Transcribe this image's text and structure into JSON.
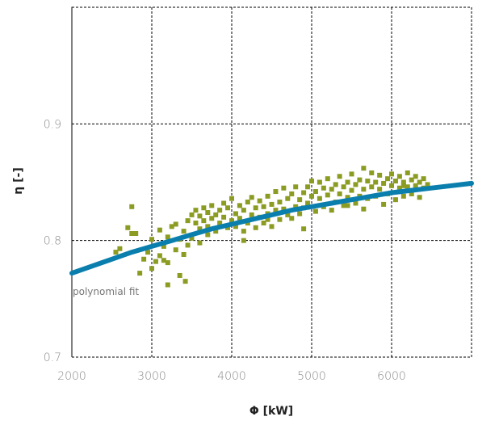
{
  "chart_data": {
    "type": "scatter",
    "title": "",
    "xlabel": "Φ [kW]",
    "ylabel": "η [-]",
    "xlim": [
      2000,
      7000
    ],
    "ylim": [
      0.7,
      1.0
    ],
    "x_ticks": [
      2000,
      3000,
      4000,
      5000,
      6000
    ],
    "x_tick_labels": [
      "2000",
      "3000",
      "4000",
      "5000",
      "6000"
    ],
    "y_ticks": [
      0.7,
      0.8,
      0.9
    ],
    "y_tick_labels": [
      "0.7",
      "0.8",
      "0.9"
    ],
    "grid": true,
    "annotation": "polynomial fit",
    "colors": {
      "points": "#8c9c22",
      "fit": "#0a7fae"
    },
    "series": [
      {
        "kind": "points",
        "x": [
          2550,
          2600,
          2700,
          2750,
          2800,
          2900,
          2950,
          3000,
          3000,
          3050,
          3100,
          3100,
          3150,
          3200,
          3200,
          3250,
          3300,
          3300,
          3350,
          3400,
          3400,
          3450,
          3450,
          3500,
          3500,
          3550,
          3550,
          3600,
          3600,
          3650,
          3650,
          3700,
          3700,
          3750,
          3750,
          3800,
          3800,
          3850,
          3850,
          3900,
          3900,
          3950,
          3950,
          4000,
          4000,
          4050,
          4050,
          4100,
          4100,
          4150,
          4150,
          4200,
          4200,
          4250,
          4250,
          4300,
          4300,
          4350,
          4350,
          4400,
          4400,
          4450,
          4450,
          4500,
          4500,
          4550,
          4550,
          4600,
          4600,
          4650,
          4650,
          4700,
          4700,
          4750,
          4750,
          4800,
          4800,
          4850,
          4850,
          4900,
          4900,
          4950,
          4950,
          5000,
          5000,
          5050,
          5050,
          5100,
          5100,
          5150,
          5150,
          5200,
          5200,
          5250,
          5250,
          5300,
          5300,
          5350,
          5350,
          5400,
          5400,
          5450,
          5450,
          5500,
          5500,
          5550,
          5550,
          5600,
          5600,
          5650,
          5650,
          5700,
          5700,
          5750,
          5750,
          5800,
          5800,
          5850,
          5850,
          5900,
          5900,
          5950,
          5950,
          6000,
          6000,
          6050,
          6050,
          6100,
          6100,
          6150,
          6150,
          6200,
          6200,
          6250,
          6250,
          6300,
          6300,
          6350,
          6350,
          6400,
          6400,
          6450,
          3420,
          3350,
          3200,
          2850,
          2750,
          3600,
          4150,
          4900,
          5650,
          3150,
          3700,
          4450,
          5450,
          6150
        ],
        "y": [
          0.79,
          0.793,
          0.811,
          0.829,
          0.806,
          0.784,
          0.79,
          0.801,
          0.776,
          0.782,
          0.809,
          0.787,
          0.795,
          0.803,
          0.781,
          0.812,
          0.792,
          0.814,
          0.801,
          0.808,
          0.788,
          0.817,
          0.796,
          0.822,
          0.802,
          0.815,
          0.826,
          0.81,
          0.821,
          0.817,
          0.828,
          0.812,
          0.824,
          0.819,
          0.83,
          0.808,
          0.822,
          0.826,
          0.815,
          0.832,
          0.82,
          0.811,
          0.828,
          0.817,
          0.836,
          0.823,
          0.812,
          0.83,
          0.819,
          0.808,
          0.826,
          0.833,
          0.815,
          0.822,
          0.837,
          0.811,
          0.828,
          0.82,
          0.834,
          0.815,
          0.829,
          0.838,
          0.823,
          0.812,
          0.831,
          0.826,
          0.842,
          0.818,
          0.833,
          0.827,
          0.845,
          0.822,
          0.836,
          0.819,
          0.84,
          0.829,
          0.846,
          0.823,
          0.835,
          0.841,
          0.828,
          0.846,
          0.832,
          0.838,
          0.851,
          0.825,
          0.842,
          0.836,
          0.85,
          0.829,
          0.845,
          0.839,
          0.853,
          0.826,
          0.844,
          0.848,
          0.833,
          0.84,
          0.855,
          0.83,
          0.846,
          0.85,
          0.837,
          0.843,
          0.857,
          0.832,
          0.848,
          0.852,
          0.838,
          0.862,
          0.844,
          0.836,
          0.851,
          0.846,
          0.858,
          0.838,
          0.85,
          0.844,
          0.856,
          0.831,
          0.849,
          0.853,
          0.84,
          0.847,
          0.857,
          0.835,
          0.851,
          0.845,
          0.855,
          0.838,
          0.85,
          0.846,
          0.858,
          0.84,
          0.852,
          0.847,
          0.855,
          0.837,
          0.85,
          0.845,
          0.853,
          0.848,
          0.765,
          0.77,
          0.762,
          0.772,
          0.806,
          0.798,
          0.8,
          0.81,
          0.827,
          0.783,
          0.805,
          0.818,
          0.83,
          0.847
        ]
      },
      {
        "kind": "fit",
        "x": [
          2000,
          2250,
          2500,
          2750,
          3000,
          3250,
          3500,
          3750,
          4000,
          4250,
          4500,
          4750,
          5000,
          5250,
          5500,
          5750,
          6000,
          6250,
          6500,
          6750,
          7000
        ],
        "y": [
          0.772,
          0.778,
          0.784,
          0.79,
          0.795,
          0.8,
          0.805,
          0.81,
          0.814,
          0.818,
          0.822,
          0.826,
          0.829,
          0.832,
          0.835,
          0.838,
          0.841,
          0.843,
          0.845,
          0.847,
          0.849
        ]
      }
    ]
  }
}
